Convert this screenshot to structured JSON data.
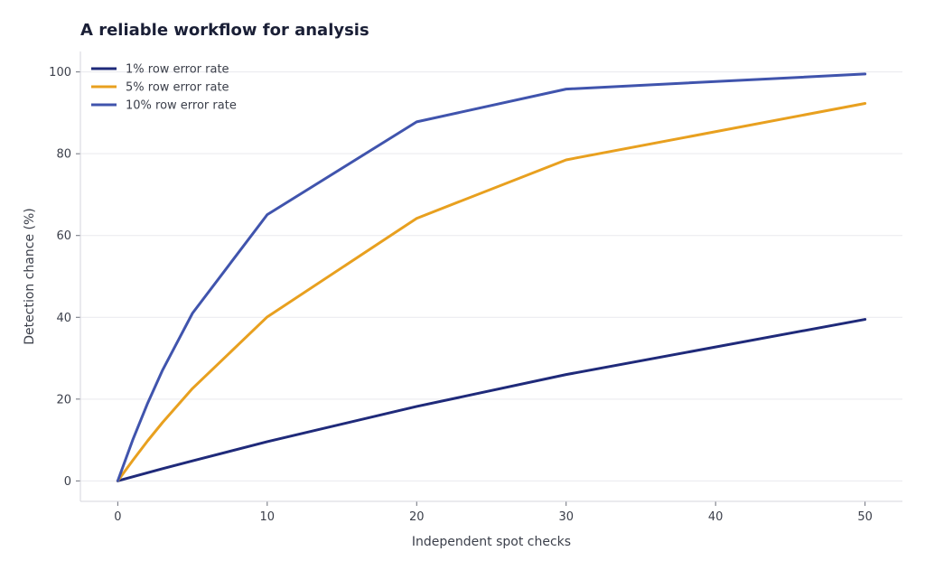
{
  "chart_data": {
    "type": "line",
    "title": "A reliable workflow for analysis",
    "xlabel": "Independent spot checks",
    "ylabel": "Detection chance (%)",
    "xlim": [
      -2.5,
      52.5
    ],
    "ylim": [
      -5,
      105
    ],
    "xticks": [
      0,
      10,
      20,
      30,
      40,
      50
    ],
    "yticks": [
      0,
      20,
      40,
      60,
      80,
      100
    ],
    "grid": "horizontal",
    "legend_position": "top-left",
    "series": [
      {
        "name": "1% row error rate",
        "color": "#1f2a7a",
        "x": [
          0,
          1,
          2,
          3,
          5,
          10,
          20,
          30,
          50
        ],
        "y": [
          0,
          1.0,
          2.0,
          3.0,
          4.9,
          9.6,
          18.2,
          26.0,
          39.5
        ]
      },
      {
        "name": "5% row error rate",
        "color": "#e8a01f",
        "x": [
          0,
          1,
          2,
          3,
          5,
          10,
          20,
          30,
          50
        ],
        "y": [
          0,
          5.0,
          9.8,
          14.3,
          22.6,
          40.1,
          64.2,
          78.5,
          92.3
        ]
      },
      {
        "name": "10% row error rate",
        "color": "#4054ad",
        "x": [
          0,
          1,
          2,
          3,
          5,
          10,
          20,
          30,
          50
        ],
        "y": [
          0,
          10.0,
          19.0,
          27.1,
          41.0,
          65.1,
          87.8,
          95.8,
          99.5
        ]
      }
    ]
  }
}
